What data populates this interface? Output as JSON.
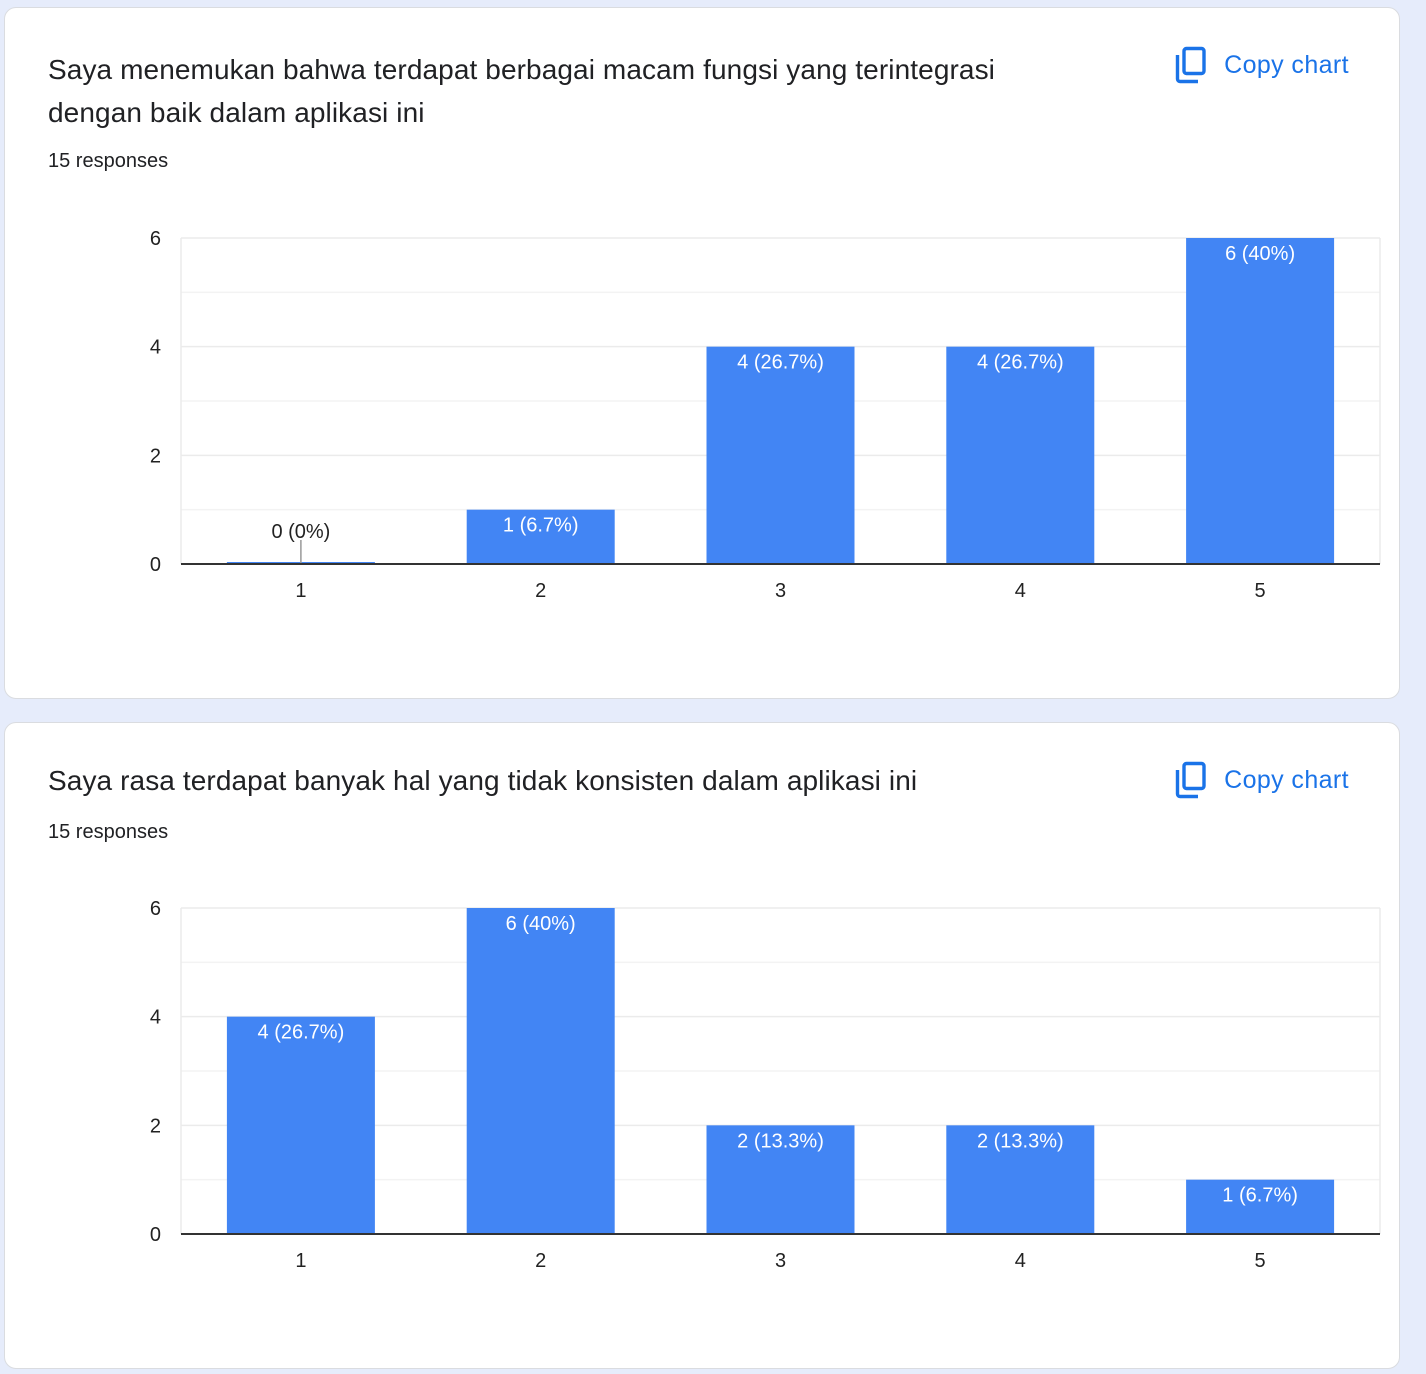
{
  "cards": [
    {
      "question": "Saya menemukan bahwa terdapat berbagai macam fungsi yang terintegrasi dengan baik dalam aplikasi ini",
      "responses": "15 responses",
      "copy_label": "Copy chart"
    },
    {
      "question": "Saya rasa terdapat banyak hal yang tidak konsisten dalam aplikasi ini",
      "responses": "15 responses",
      "copy_label": "Copy chart"
    }
  ],
  "colors": {
    "bar": "#4285f4",
    "accent": "#1a73e8",
    "grid": "#ebebeb",
    "axis": "#333333"
  },
  "chart_data": [
    {
      "type": "bar",
      "title": "Saya menemukan bahwa terdapat berbagai macam fungsi yang terintegrasi dengan baik dalam aplikasi ini",
      "categories": [
        "1",
        "2",
        "3",
        "4",
        "5"
      ],
      "values": [
        0,
        1,
        4,
        4,
        6
      ],
      "data_labels": [
        "0 (0%)",
        "1 (6.7%)",
        "4 (26.7%)",
        "4 (26.7%)",
        "6 (40%)"
      ],
      "yticks": [
        0,
        2,
        4,
        6
      ],
      "ylim": [
        0,
        6
      ],
      "xlabel": "",
      "ylabel": "",
      "grid": true
    },
    {
      "type": "bar",
      "title": "Saya rasa terdapat banyak hal yang tidak konsisten dalam aplikasi ini",
      "categories": [
        "1",
        "2",
        "3",
        "4",
        "5"
      ],
      "values": [
        4,
        6,
        2,
        2,
        1
      ],
      "data_labels": [
        "4 (26.7%)",
        "6 (40%)",
        "2 (13.3%)",
        "2 (13.3%)",
        "1 (6.7%)"
      ],
      "yticks": [
        0,
        2,
        4,
        6
      ],
      "ylim": [
        0,
        6
      ],
      "xlabel": "",
      "ylabel": "",
      "grid": true
    }
  ]
}
